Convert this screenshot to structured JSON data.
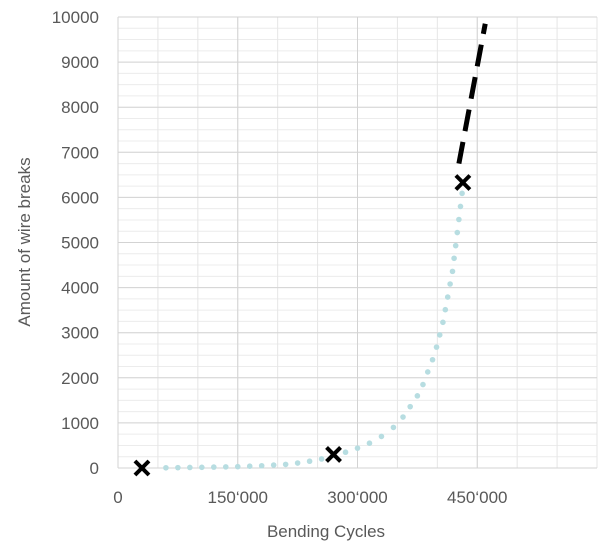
{
  "chart_data": {
    "type": "scatter",
    "title": "",
    "xlabel": "Bending Cycles",
    "ylabel": "Amount of wire breaks",
    "xlim": [
      0,
      600000
    ],
    "ylim": [
      0,
      10000
    ],
    "x_ticks": [
      0,
      150000,
      300000,
      450000
    ],
    "x_tick_labels": [
      "0",
      "150‘000",
      "300‘000",
      "450‘000"
    ],
    "x_minor_grid_step": 50000,
    "y_ticks": [
      0,
      1000,
      2000,
      3000,
      4000,
      5000,
      6000,
      7000,
      8000,
      9000,
      10000
    ],
    "y_tick_labels": [
      "0",
      "1000",
      "2000",
      "3000",
      "4000",
      "5000",
      "6000",
      "7000",
      "8000",
      "9000",
      "10000"
    ],
    "y_minor_grid_step": 250,
    "grid": true,
    "legend": "none",
    "series": [
      {
        "style": "dotted",
        "color": "#b7dde1",
        "points": [
          [
            60000,
            5
          ],
          [
            75000,
            8
          ],
          [
            90000,
            12
          ],
          [
            105000,
            15
          ],
          [
            120000,
            20
          ],
          [
            135000,
            25
          ],
          [
            150000,
            30
          ],
          [
            165000,
            40
          ],
          [
            180000,
            50
          ],
          [
            195000,
            65
          ],
          [
            210000,
            80
          ],
          [
            225000,
            110
          ],
          [
            240000,
            150
          ],
          [
            255000,
            200
          ],
          [
            270000,
            280
          ],
          [
            285000,
            350
          ],
          [
            300000,
            440
          ],
          [
            315000,
            550
          ],
          [
            330000,
            700
          ],
          [
            345000,
            900
          ],
          [
            357000,
            1130
          ],
          [
            366000,
            1360
          ],
          [
            375000,
            1600
          ],
          [
            382000,
            1850
          ],
          [
            388000,
            2130
          ],
          [
            394000,
            2400
          ],
          [
            399000,
            2680
          ],
          [
            403000,
            2950
          ],
          [
            407000,
            3230
          ],
          [
            410000,
            3510
          ],
          [
            413000,
            3790
          ],
          [
            416000,
            4080
          ],
          [
            419000,
            4360
          ],
          [
            421000,
            4650
          ],
          [
            423000,
            4930
          ],
          [
            425000,
            5220
          ],
          [
            427000,
            5510
          ],
          [
            429000,
            5800
          ],
          [
            431000,
            6090
          ]
        ]
      },
      {
        "style": "dashed",
        "color": "#000000",
        "points": [
          [
            427000,
            6750
          ],
          [
            460000,
            9850
          ]
        ]
      },
      {
        "style": "cross-markers",
        "color": "#000000",
        "points": [
          [
            30000,
            0
          ],
          [
            270000,
            300
          ],
          [
            432000,
            6330
          ]
        ]
      }
    ]
  }
}
